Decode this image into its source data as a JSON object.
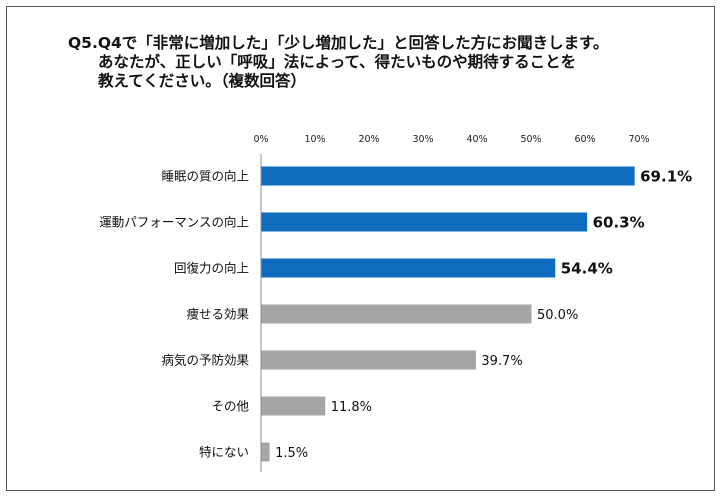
{
  "title": {
    "line1": "Q5.Q4で「非常に増加した」「少し増加した」と回答した方にお聞きします。",
    "line2": "あなたが、正しい「呼吸」法によって、得たいものや期待することを",
    "line3": "教えてください。（複数回答）"
  },
  "chart_data": {
    "type": "bar",
    "orientation": "horizontal",
    "title": "Q5.Q4で「非常に増加した」「少し増加した」と回答した方にお聞きします。あなたが、正しい「呼吸」法によって、得たいものや期待することを教えてください。（複数回答）",
    "xlim": [
      0,
      70
    ],
    "xticks": [
      "0%",
      "10%",
      "20%",
      "30%",
      "40%",
      "50%",
      "60%",
      "70%"
    ],
    "tick_values": [
      0,
      10,
      20,
      30,
      40,
      50,
      60,
      70
    ],
    "categories": [
      "睡眠の質の向上",
      "運動パフォーマンスの向上",
      "回復力の向上",
      "痩せる効果",
      "病気の予防効果",
      "その他",
      "特にない"
    ],
    "values": [
      69.1,
      60.3,
      54.4,
      50.0,
      39.7,
      11.8,
      1.5
    ],
    "labels": [
      "69.1%",
      "60.3%",
      "54.4%",
      "50.0%",
      "39.7%",
      "11.8%",
      "1.5%"
    ],
    "highlighted": [
      true,
      true,
      true,
      false,
      false,
      false,
      false
    ],
    "colors": {
      "highlight": "#0f6cbd",
      "normal": "#a6a6a6"
    }
  }
}
